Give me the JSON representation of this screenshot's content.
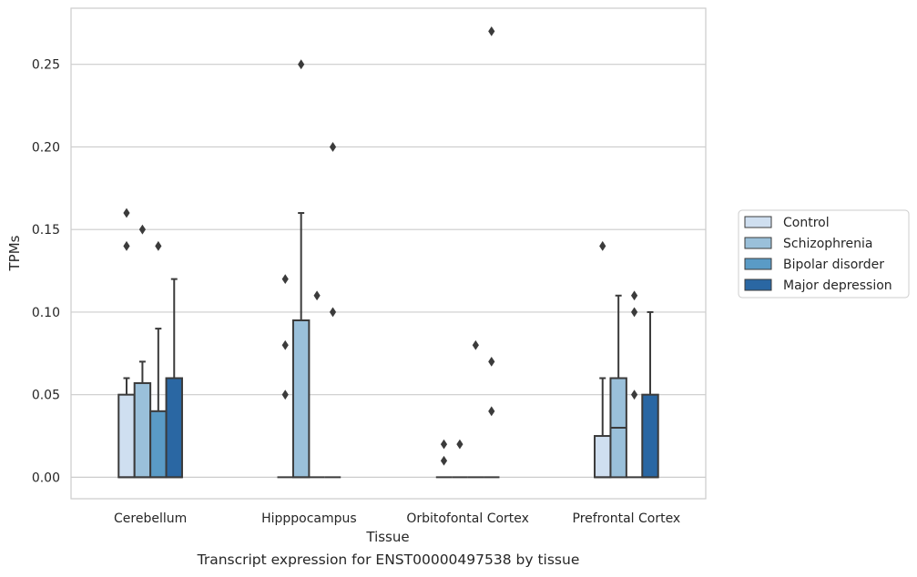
{
  "chart_data": {
    "type": "box",
    "xlabel": "Tissue",
    "ylabel": "TPMs",
    "categories": [
      "Cerebellum",
      "Hipppocampus",
      "Orbitofontal Cortex",
      "Prefrontal Cortex"
    ],
    "ylim": [
      -0.013,
      0.284
    ],
    "yticks": [
      0.0,
      0.05,
      0.1,
      0.15,
      0.2,
      0.25
    ],
    "ytick_labels": [
      "0.00",
      "0.05",
      "0.10",
      "0.15",
      "0.20",
      "0.25"
    ],
    "grid": "horizontal",
    "legend_position": "right",
    "series": [
      {
        "name": "Control",
        "color": "#cfdff0",
        "boxes": [
          {
            "q1": 0.0,
            "median": 0.0,
            "q3": 0.05,
            "whisker_low": 0.0,
            "whisker_high": 0.06,
            "outliers": [
              0.14,
              0.16
            ]
          },
          {
            "q1": 0.0,
            "median": 0.0,
            "q3": 0.0,
            "whisker_low": 0.0,
            "whisker_high": 0.0,
            "outliers": [
              0.05,
              0.08,
              0.12
            ]
          },
          {
            "q1": 0.0,
            "median": 0.0,
            "q3": 0.0,
            "whisker_low": 0.0,
            "whisker_high": 0.0,
            "outliers": [
              0.01,
              0.02
            ]
          },
          {
            "q1": 0.0,
            "median": 0.0,
            "q3": 0.025,
            "whisker_low": 0.0,
            "whisker_high": 0.06,
            "outliers": [
              0.14
            ]
          }
        ]
      },
      {
        "name": "Schizophrenia",
        "color": "#9ac0da",
        "boxes": [
          {
            "q1": 0.0,
            "median": 0.0,
            "q3": 0.057,
            "whisker_low": 0.0,
            "whisker_high": 0.07,
            "outliers": [
              0.15
            ]
          },
          {
            "q1": 0.0,
            "median": 0.0,
            "q3": 0.095,
            "whisker_low": 0.0,
            "whisker_high": 0.16,
            "outliers": [
              0.25
            ]
          },
          {
            "q1": 0.0,
            "median": 0.0,
            "q3": 0.0,
            "whisker_low": 0.0,
            "whisker_high": 0.0,
            "outliers": [
              0.02
            ]
          },
          {
            "q1": 0.0,
            "median": 0.03,
            "q3": 0.06,
            "whisker_low": 0.0,
            "whisker_high": 0.11,
            "outliers": []
          }
        ]
      },
      {
        "name": "Bipolar disorder",
        "color": "#5a9bc6",
        "boxes": [
          {
            "q1": 0.0,
            "median": 0.0,
            "q3": 0.04,
            "whisker_low": 0.0,
            "whisker_high": 0.09,
            "outliers": [
              0.14
            ]
          },
          {
            "q1": 0.0,
            "median": 0.0,
            "q3": 0.0,
            "whisker_low": 0.0,
            "whisker_high": 0.0,
            "outliers": [
              0.11
            ]
          },
          {
            "q1": 0.0,
            "median": 0.0,
            "q3": 0.0,
            "whisker_low": 0.0,
            "whisker_high": 0.0,
            "outliers": [
              0.08
            ]
          },
          {
            "q1": 0.0,
            "median": 0.0,
            "q3": 0.0,
            "whisker_low": 0.0,
            "whisker_high": 0.0,
            "outliers": [
              0.05,
              0.1,
              0.11
            ]
          }
        ]
      },
      {
        "name": "Major depression",
        "color": "#2a67a3",
        "boxes": [
          {
            "q1": 0.0,
            "median": 0.0,
            "q3": 0.06,
            "whisker_low": 0.0,
            "whisker_high": 0.12,
            "outliers": []
          },
          {
            "q1": 0.0,
            "median": 0.0,
            "q3": 0.0,
            "whisker_low": 0.0,
            "whisker_high": 0.0,
            "outliers": [
              0.1,
              0.2
            ]
          },
          {
            "q1": 0.0,
            "median": 0.0,
            "q3": 0.0,
            "whisker_low": 0.0,
            "whisker_high": 0.0,
            "outliers": [
              0.04,
              0.07,
              0.27
            ]
          },
          {
            "q1": 0.0,
            "median": 0.0,
            "q3": 0.05,
            "whisker_low": 0.0,
            "whisker_high": 0.1,
            "outliers": []
          }
        ]
      }
    ]
  },
  "caption": "Transcript expression for ENST00000497538 by tissue"
}
